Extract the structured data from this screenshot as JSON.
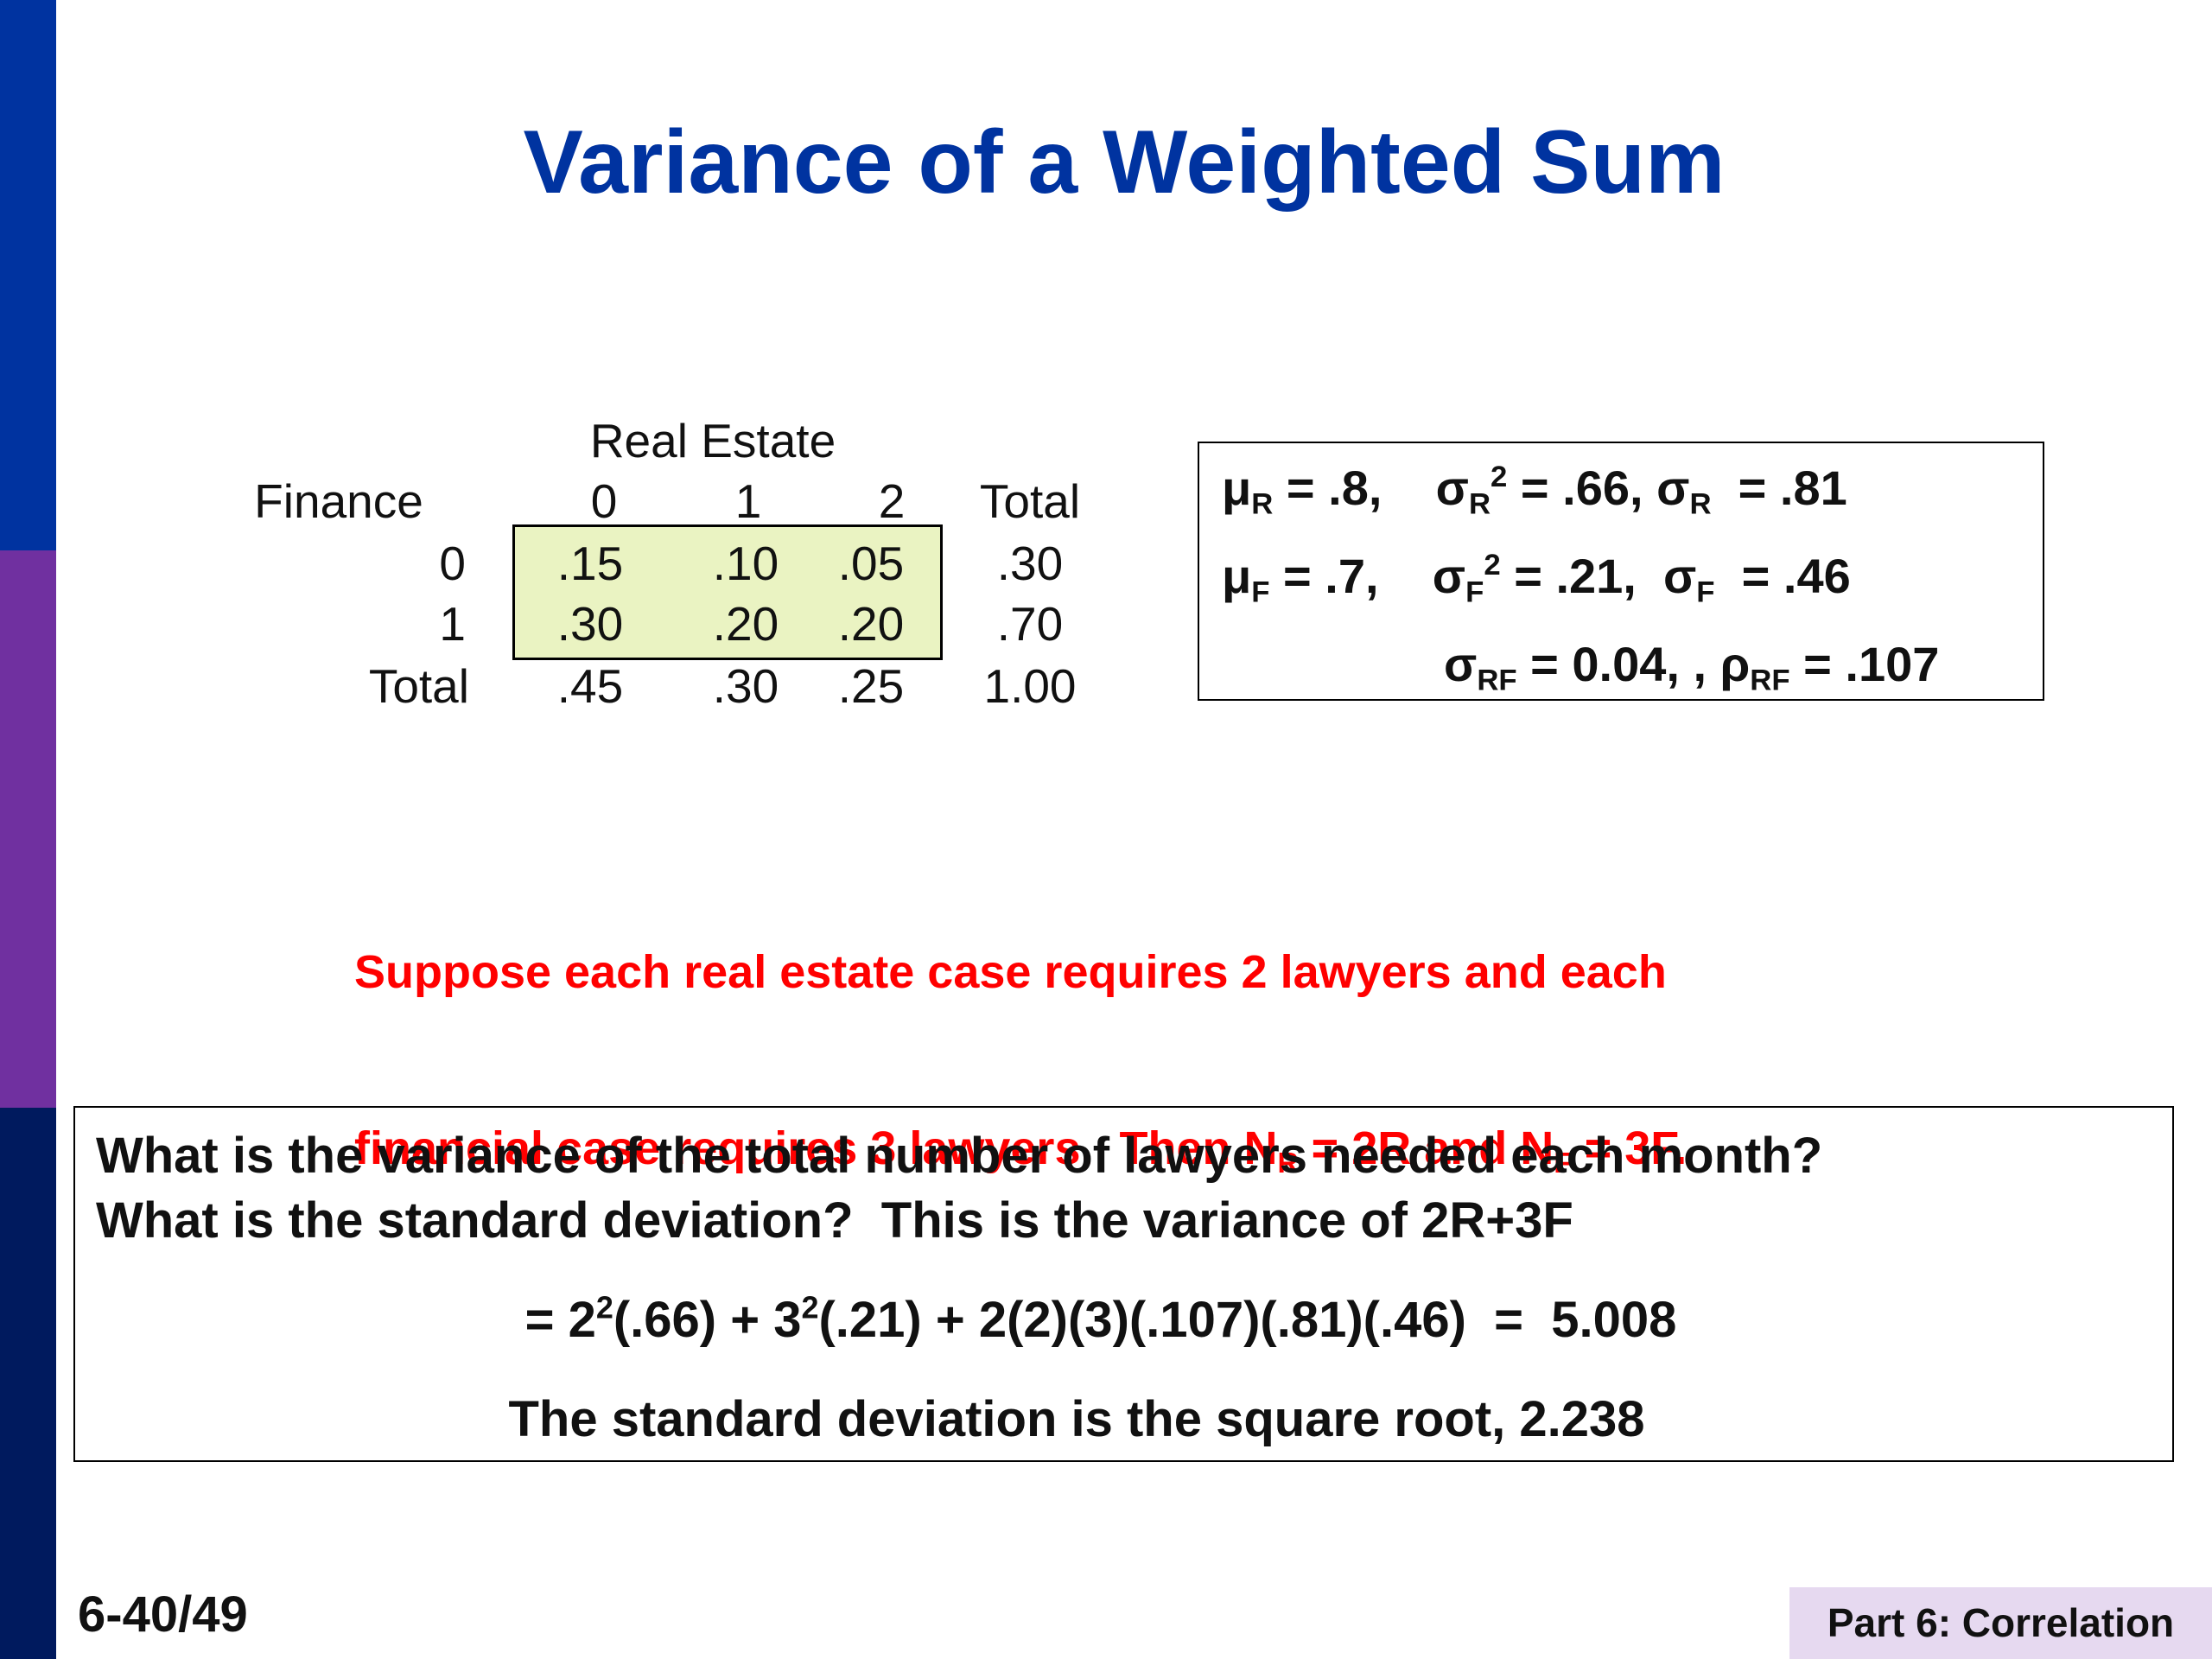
{
  "title": "Variance of a Weighted Sum",
  "table": {
    "header": "Real Estate",
    "row_header": "Finance",
    "columns": [
      "0",
      "1",
      "2",
      "Total"
    ],
    "rows": [
      {
        "label": "0",
        "cells": [
          ".15",
          ".10",
          ".05"
        ],
        "total": ".30"
      },
      {
        "label": "1",
        "cells": [
          ".30",
          ".20",
          ".20"
        ],
        "total": ".70"
      },
      {
        "label": "Total",
        "cells": [
          ".45",
          ".30",
          ".25"
        ],
        "total": "1.00"
      }
    ]
  },
  "stats": [
    [
      {
        "text": "μ"
      },
      {
        "sub": "R"
      },
      {
        "text": " = .8,    σ"
      },
      {
        "sub": "R"
      },
      {
        "sup": "2"
      },
      {
        "text": " = .66, σ"
      },
      {
        "sub": "R"
      },
      {
        "text": "  = .81"
      }
    ],
    [
      {
        "text": "μ"
      },
      {
        "sub": "F"
      },
      {
        "text": " = .7,    σ"
      },
      {
        "sub": "F"
      },
      {
        "sup": "2"
      },
      {
        "text": " = .21,  σ"
      },
      {
        "sub": "F"
      },
      {
        "text": "  = .46"
      }
    ],
    [
      {
        "text": "σ"
      },
      {
        "sub": "RF"
      },
      {
        "text": " = 0.04, , ρ"
      },
      {
        "sub": "RF"
      },
      {
        "text": " = .107"
      }
    ]
  ],
  "note": [
    [
      {
        "text": "Suppose each real estate case requires 2 lawyers and each"
      }
    ],
    [
      {
        "text": "financial case requires 3 lawyers.  Then N"
      },
      {
        "sub": "R"
      },
      {
        "text": " = 2R and N"
      },
      {
        "sub": "F"
      },
      {
        "text": " = 3F."
      }
    ]
  ],
  "question": {
    "lines": [
      "What is the variance of the total number of lawyers needed each month?",
      "What is the standard deviation?  This is the variance of 2R+3F"
    ],
    "formula": [
      {
        "text": "= 2"
      },
      {
        "sup": "2"
      },
      {
        "text": "(.66) + 3"
      },
      {
        "sup": "2"
      },
      {
        "text": "(.21) + 2(2)(3)(.107)(.81)(.46)  =  5.008"
      }
    ],
    "conclusion": "The standard deviation is the square root, 2.238"
  },
  "footer": {
    "page": "6-40/49",
    "section": "Part 6: Correlation"
  }
}
